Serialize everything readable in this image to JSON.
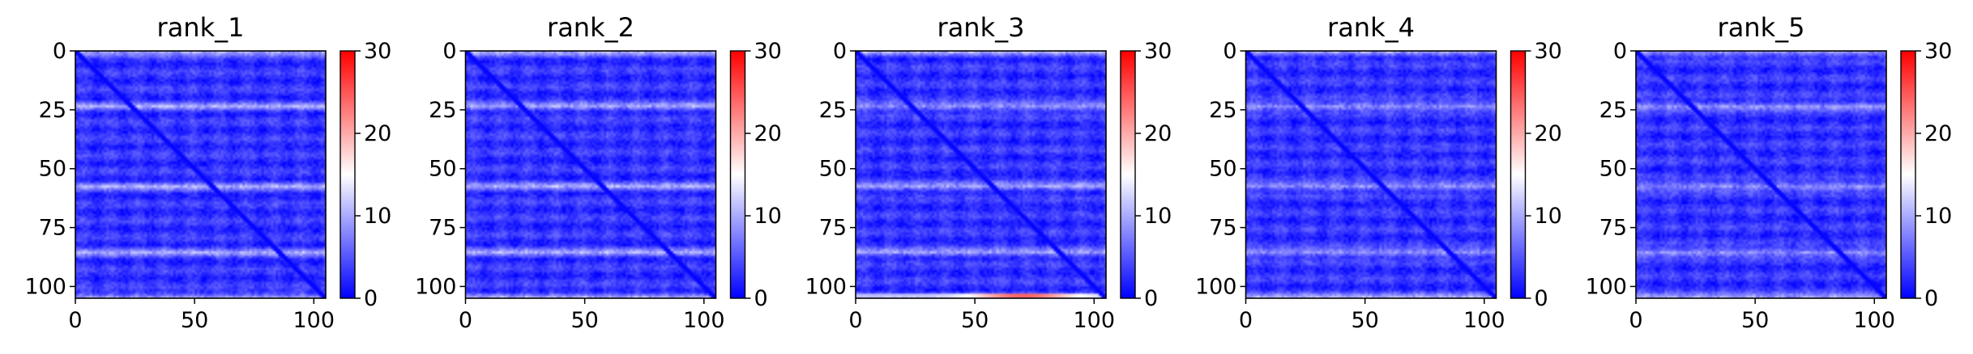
{
  "chart_data": [
    {
      "type": "heatmap",
      "title": "rank_1",
      "x_ticks": [
        0,
        50,
        100
      ],
      "y_ticks": [
        0,
        25,
        50,
        75,
        100
      ],
      "xlim": [
        0,
        105
      ],
      "ylim": [
        105,
        0
      ],
      "colorbar": {
        "range": [
          0,
          30
        ],
        "ticks": [
          0,
          10,
          20,
          30
        ],
        "colormap": "bwr"
      },
      "description_values": {
        "diagonal": 0,
        "background": 3,
        "band_rows": [
          0,
          23,
          57,
          85,
          104
        ],
        "band_value": 11
      }
    },
    {
      "type": "heatmap",
      "title": "rank_2",
      "x_ticks": [
        0,
        50,
        100
      ],
      "y_ticks": [
        0,
        25,
        50,
        75,
        100
      ],
      "xlim": [
        0,
        105
      ],
      "ylim": [
        105,
        0
      ],
      "colorbar": {
        "range": [
          0,
          30
        ],
        "ticks": [
          0,
          10,
          20,
          30
        ],
        "colormap": "bwr"
      },
      "description_values": {
        "diagonal": 0,
        "background": 3,
        "band_rows": [
          0,
          23,
          57,
          85,
          104
        ],
        "band_value": 11
      }
    },
    {
      "type": "heatmap",
      "title": "rank_3",
      "x_ticks": [
        0,
        50,
        100
      ],
      "y_ticks": [
        0,
        25,
        50,
        75,
        100
      ],
      "xlim": [
        0,
        105
      ],
      "ylim": [
        105,
        0
      ],
      "colorbar": {
        "range": [
          0,
          30
        ],
        "ticks": [
          0,
          10,
          20,
          30
        ],
        "colormap": "bwr"
      },
      "description_values": {
        "diagonal": 0,
        "background": 3,
        "band_rows": [
          0,
          23,
          57,
          85,
          104
        ],
        "band_value": 11,
        "hot_row": 104,
        "hot_value": 24
      }
    },
    {
      "type": "heatmap",
      "title": "rank_4",
      "x_ticks": [
        0,
        50,
        100
      ],
      "y_ticks": [
        0,
        25,
        50,
        75,
        100
      ],
      "xlim": [
        0,
        105
      ],
      "ylim": [
        105,
        0
      ],
      "colorbar": {
        "range": [
          0,
          30
        ],
        "ticks": [
          0,
          10,
          20,
          30
        ],
        "colormap": "bwr"
      },
      "description_values": {
        "diagonal": 0,
        "background": 3,
        "band_rows": [
          0,
          23,
          57,
          85,
          104
        ],
        "band_value": 11
      }
    },
    {
      "type": "heatmap",
      "title": "rank_5",
      "x_ticks": [
        0,
        50,
        100
      ],
      "y_ticks": [
        0,
        25,
        50,
        75,
        100
      ],
      "xlim": [
        0,
        105
      ],
      "ylim": [
        105,
        0
      ],
      "colorbar": {
        "range": [
          0,
          30
        ],
        "ticks": [
          0,
          10,
          20,
          30
        ],
        "colormap": "bwr"
      },
      "description_values": {
        "diagonal": 0,
        "background": 3,
        "band_rows": [
          0,
          23,
          57,
          85,
          104
        ],
        "band_value": 11
      }
    }
  ]
}
